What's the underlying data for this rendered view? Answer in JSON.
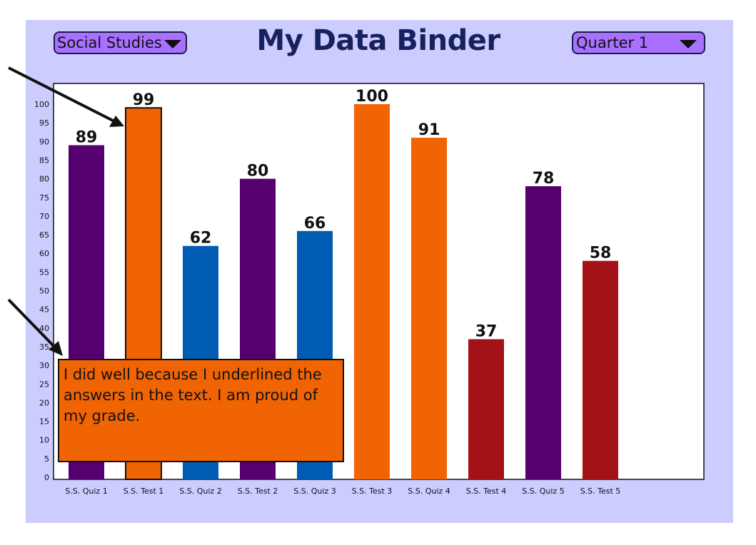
{
  "header": {
    "title": "My Data Binder",
    "subject_select": "Social Studies",
    "quarter_select": "Quarter 1"
  },
  "colors": {
    "panel": "#ccccff",
    "dropdown": "#a970ff",
    "title": "#16225e",
    "purple": "#56006f",
    "orange": "#f06404",
    "blue": "#005bb2",
    "red": "#a31216"
  },
  "note": {
    "text": "I did well because I underlined the answers in the text. I am proud of my grade."
  },
  "chart_data": {
    "type": "bar",
    "title": "",
    "xlabel": "",
    "ylabel": "",
    "ylim": [
      0,
      100
    ],
    "yticks": [
      0,
      5,
      10,
      15,
      20,
      25,
      30,
      35,
      40,
      45,
      50,
      55,
      60,
      65,
      70,
      75,
      80,
      85,
      90,
      95,
      100
    ],
    "grid": false,
    "legend": "none",
    "categories": [
      "S.S. Quiz 1",
      "S.S. Test 1",
      "S.S. Quiz 2",
      "S.S. Test 2",
      "S.S. Quiz 3",
      "S.S. Test 3",
      "S.S. Quiz 4",
      "S.S. Test 4",
      "S.S. Quiz 5",
      "S.S. Test 5"
    ],
    "values": [
      89,
      99,
      62,
      80,
      66,
      100,
      91,
      37,
      78,
      58
    ],
    "bar_colors": [
      "#56006f",
      "#f06404",
      "#005bb2",
      "#56006f",
      "#005bb2",
      "#f06404",
      "#f06404",
      "#a31216",
      "#56006f",
      "#a31216"
    ],
    "highlighted_bar": "S.S. Test 1"
  }
}
